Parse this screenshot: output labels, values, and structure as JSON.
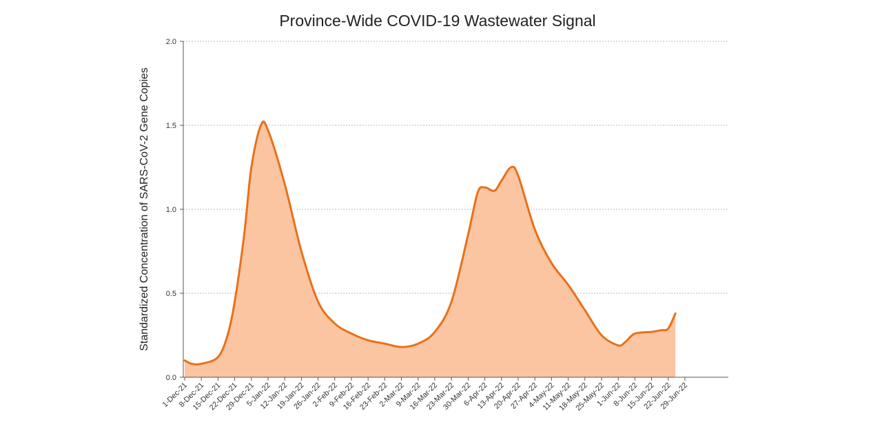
{
  "chart_data": {
    "type": "area",
    "title": "Province-Wide COVID-19 Wastewater Signal",
    "xlabel": "",
    "ylabel": "Standardized Concentration of SARS-CoV-2 Gene Copies",
    "ylim": [
      0,
      2.0
    ],
    "yticks": [
      "0.0",
      "0.5",
      "1.0",
      "1.5",
      "2.0"
    ],
    "grid": true,
    "x_tick_labels": [
      "1-Dec-21",
      "8-Dec-21",
      "15-Dec-21",
      "22-Dec-21",
      "29-Dec-21",
      "5-Jan-22",
      "12-Jan-22",
      "19-Jan-22",
      "26-Jan-22",
      "2-Feb-22",
      "9-Feb-22",
      "16-Feb-22",
      "23-Feb-22",
      "2-Mar-22",
      "9-Mar-22",
      "16-Mar-22",
      "23-Mar-22",
      "30-Mar-22",
      "6-Apr-22",
      "13-Apr-22",
      "20-Apr-22",
      "27-Apr-22",
      "4-May-22",
      "11-May-22",
      "18-May-22",
      "25-May-22",
      "1-Jun-22",
      "8-Jun-22",
      "15-Jun-22",
      "22-Jun-22",
      "29-Jun-22"
    ],
    "series": [
      {
        "color": "#e8701a",
        "fill": "#fac5a0",
        "points": [
          {
            "x": "1-Dec-21",
            "y": 0.1
          },
          {
            "x": "4-Dec-21",
            "y": 0.08
          },
          {
            "x": "8-Dec-21",
            "y": 0.08
          },
          {
            "x": "15-Dec-21",
            "y": 0.12
          },
          {
            "x": "19-Dec-21",
            "y": 0.25
          },
          {
            "x": "22-Dec-21",
            "y": 0.45
          },
          {
            "x": "26-Dec-21",
            "y": 0.85
          },
          {
            "x": "29-Dec-21",
            "y": 1.25
          },
          {
            "x": "2-Jan-22",
            "y": 1.5
          },
          {
            "x": "5-Jan-22",
            "y": 1.47
          },
          {
            "x": "12-Jan-22",
            "y": 1.15
          },
          {
            "x": "19-Jan-22",
            "y": 0.75
          },
          {
            "x": "26-Jan-22",
            "y": 0.45
          },
          {
            "x": "2-Feb-22",
            "y": 0.32
          },
          {
            "x": "9-Feb-22",
            "y": 0.26
          },
          {
            "x": "16-Feb-22",
            "y": 0.22
          },
          {
            "x": "23-Feb-22",
            "y": 0.2
          },
          {
            "x": "2-Mar-22",
            "y": 0.18
          },
          {
            "x": "9-Mar-22",
            "y": 0.2
          },
          {
            "x": "16-Mar-22",
            "y": 0.27
          },
          {
            "x": "23-Mar-22",
            "y": 0.45
          },
          {
            "x": "30-Mar-22",
            "y": 0.85
          },
          {
            "x": "3-Apr-22",
            "y": 1.1
          },
          {
            "x": "6-Apr-22",
            "y": 1.13
          },
          {
            "x": "10-Apr-22",
            "y": 1.11
          },
          {
            "x": "13-Apr-22",
            "y": 1.17
          },
          {
            "x": "17-Apr-22",
            "y": 1.25
          },
          {
            "x": "20-Apr-22",
            "y": 1.2
          },
          {
            "x": "27-Apr-22",
            "y": 0.88
          },
          {
            "x": "4-May-22",
            "y": 0.68
          },
          {
            "x": "11-May-22",
            "y": 0.55
          },
          {
            "x": "18-May-22",
            "y": 0.4
          },
          {
            "x": "25-May-22",
            "y": 0.25
          },
          {
            "x": "1-Jun-22",
            "y": 0.19
          },
          {
            "x": "4-Jun-22",
            "y": 0.21
          },
          {
            "x": "8-Jun-22",
            "y": 0.26
          },
          {
            "x": "15-Jun-22",
            "y": 0.27
          },
          {
            "x": "19-Jun-22",
            "y": 0.28
          },
          {
            "x": "22-Jun-22",
            "y": 0.29
          },
          {
            "x": "25-Jun-22",
            "y": 0.38
          }
        ]
      }
    ]
  }
}
